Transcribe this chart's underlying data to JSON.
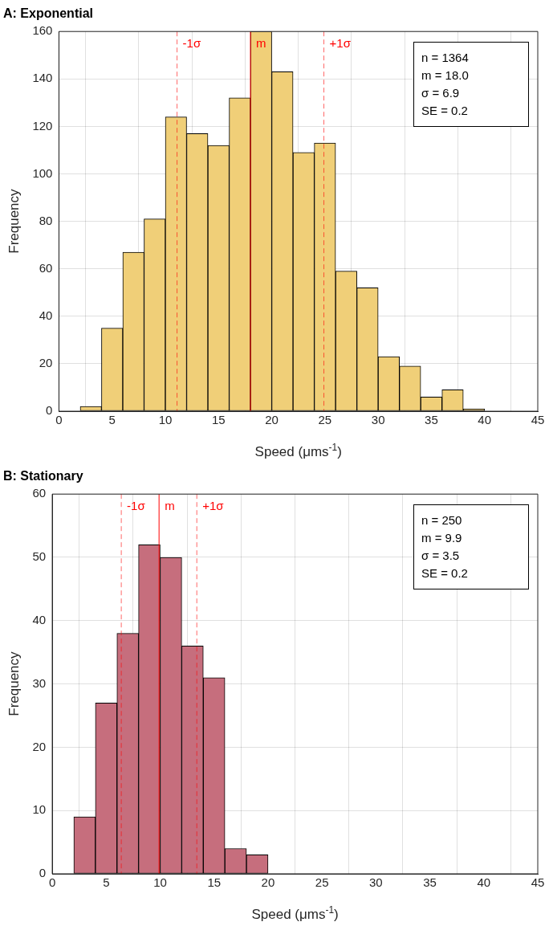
{
  "chart_data": [
    {
      "type": "histogram",
      "title": "A: Exponential",
      "xlabel": "Speed (μms$^{-1}$)",
      "ylabel": "Frequency",
      "bins": [
        2,
        4,
        6,
        8,
        10,
        12,
        14,
        16,
        18,
        20,
        22,
        24,
        26,
        28,
        30,
        32,
        34,
        36,
        38,
        40
      ],
      "values": [
        2,
        35,
        67,
        81,
        124,
        117,
        112,
        132,
        160,
        143,
        109,
        113,
        59,
        52,
        23,
        19,
        6,
        9,
        1
      ],
      "color": "#f0cf78",
      "xlim": [
        0,
        45
      ],
      "xticks": [
        0,
        5,
        10,
        15,
        20,
        25,
        30,
        35,
        40,
        45
      ],
      "ylim": [
        0,
        160
      ],
      "yticks": [
        0,
        20,
        40,
        60,
        80,
        100,
        120,
        140,
        160
      ],
      "grid": true,
      "ref_lines": [
        {
          "axis": "x",
          "value": 11.1,
          "label": "-1σ",
          "color": "#ff0000",
          "line_style": "dashed"
        },
        {
          "axis": "x",
          "value": 18.0,
          "label": "m",
          "color": "#ff0000",
          "line_style": "solid"
        },
        {
          "axis": "x",
          "value": 24.9,
          "label": "+1σ",
          "color": "#ff0000",
          "line_style": "dashed"
        }
      ],
      "annotations": [
        "n = 1364",
        "m = 18.0",
        "σ = 6.9",
        "SE = 0.2"
      ]
    },
    {
      "type": "histogram",
      "title": "B: Stationary",
      "xlabel": "Speed (μms$^{-1}$)",
      "ylabel": "Frequency",
      "bins": [
        2,
        4,
        6,
        8,
        10,
        12,
        14,
        16,
        18,
        20
      ],
      "values": [
        9,
        27,
        38,
        52,
        50,
        36,
        31,
        4,
        3
      ],
      "color": "#c66e7d",
      "xlim": [
        0,
        45
      ],
      "xticks": [
        0,
        5,
        10,
        15,
        20,
        25,
        30,
        35,
        40,
        45
      ],
      "ylim": [
        0,
        60
      ],
      "yticks": [
        0,
        10,
        20,
        30,
        40,
        50,
        60
      ],
      "grid": true,
      "ref_lines": [
        {
          "axis": "x",
          "value": 6.4,
          "label": "-1σ",
          "color": "#ff0000",
          "line_style": "dashed"
        },
        {
          "axis": "x",
          "value": 9.9,
          "label": "m",
          "color": "#ff0000",
          "line_style": "solid"
        },
        {
          "axis": "x",
          "value": 13.4,
          "label": "+1σ",
          "color": "#ff0000",
          "line_style": "dashed"
        }
      ],
      "annotations": [
        "n = 250",
        "m = 9.9",
        "σ = 3.5",
        "SE = 0.2"
      ]
    }
  ]
}
